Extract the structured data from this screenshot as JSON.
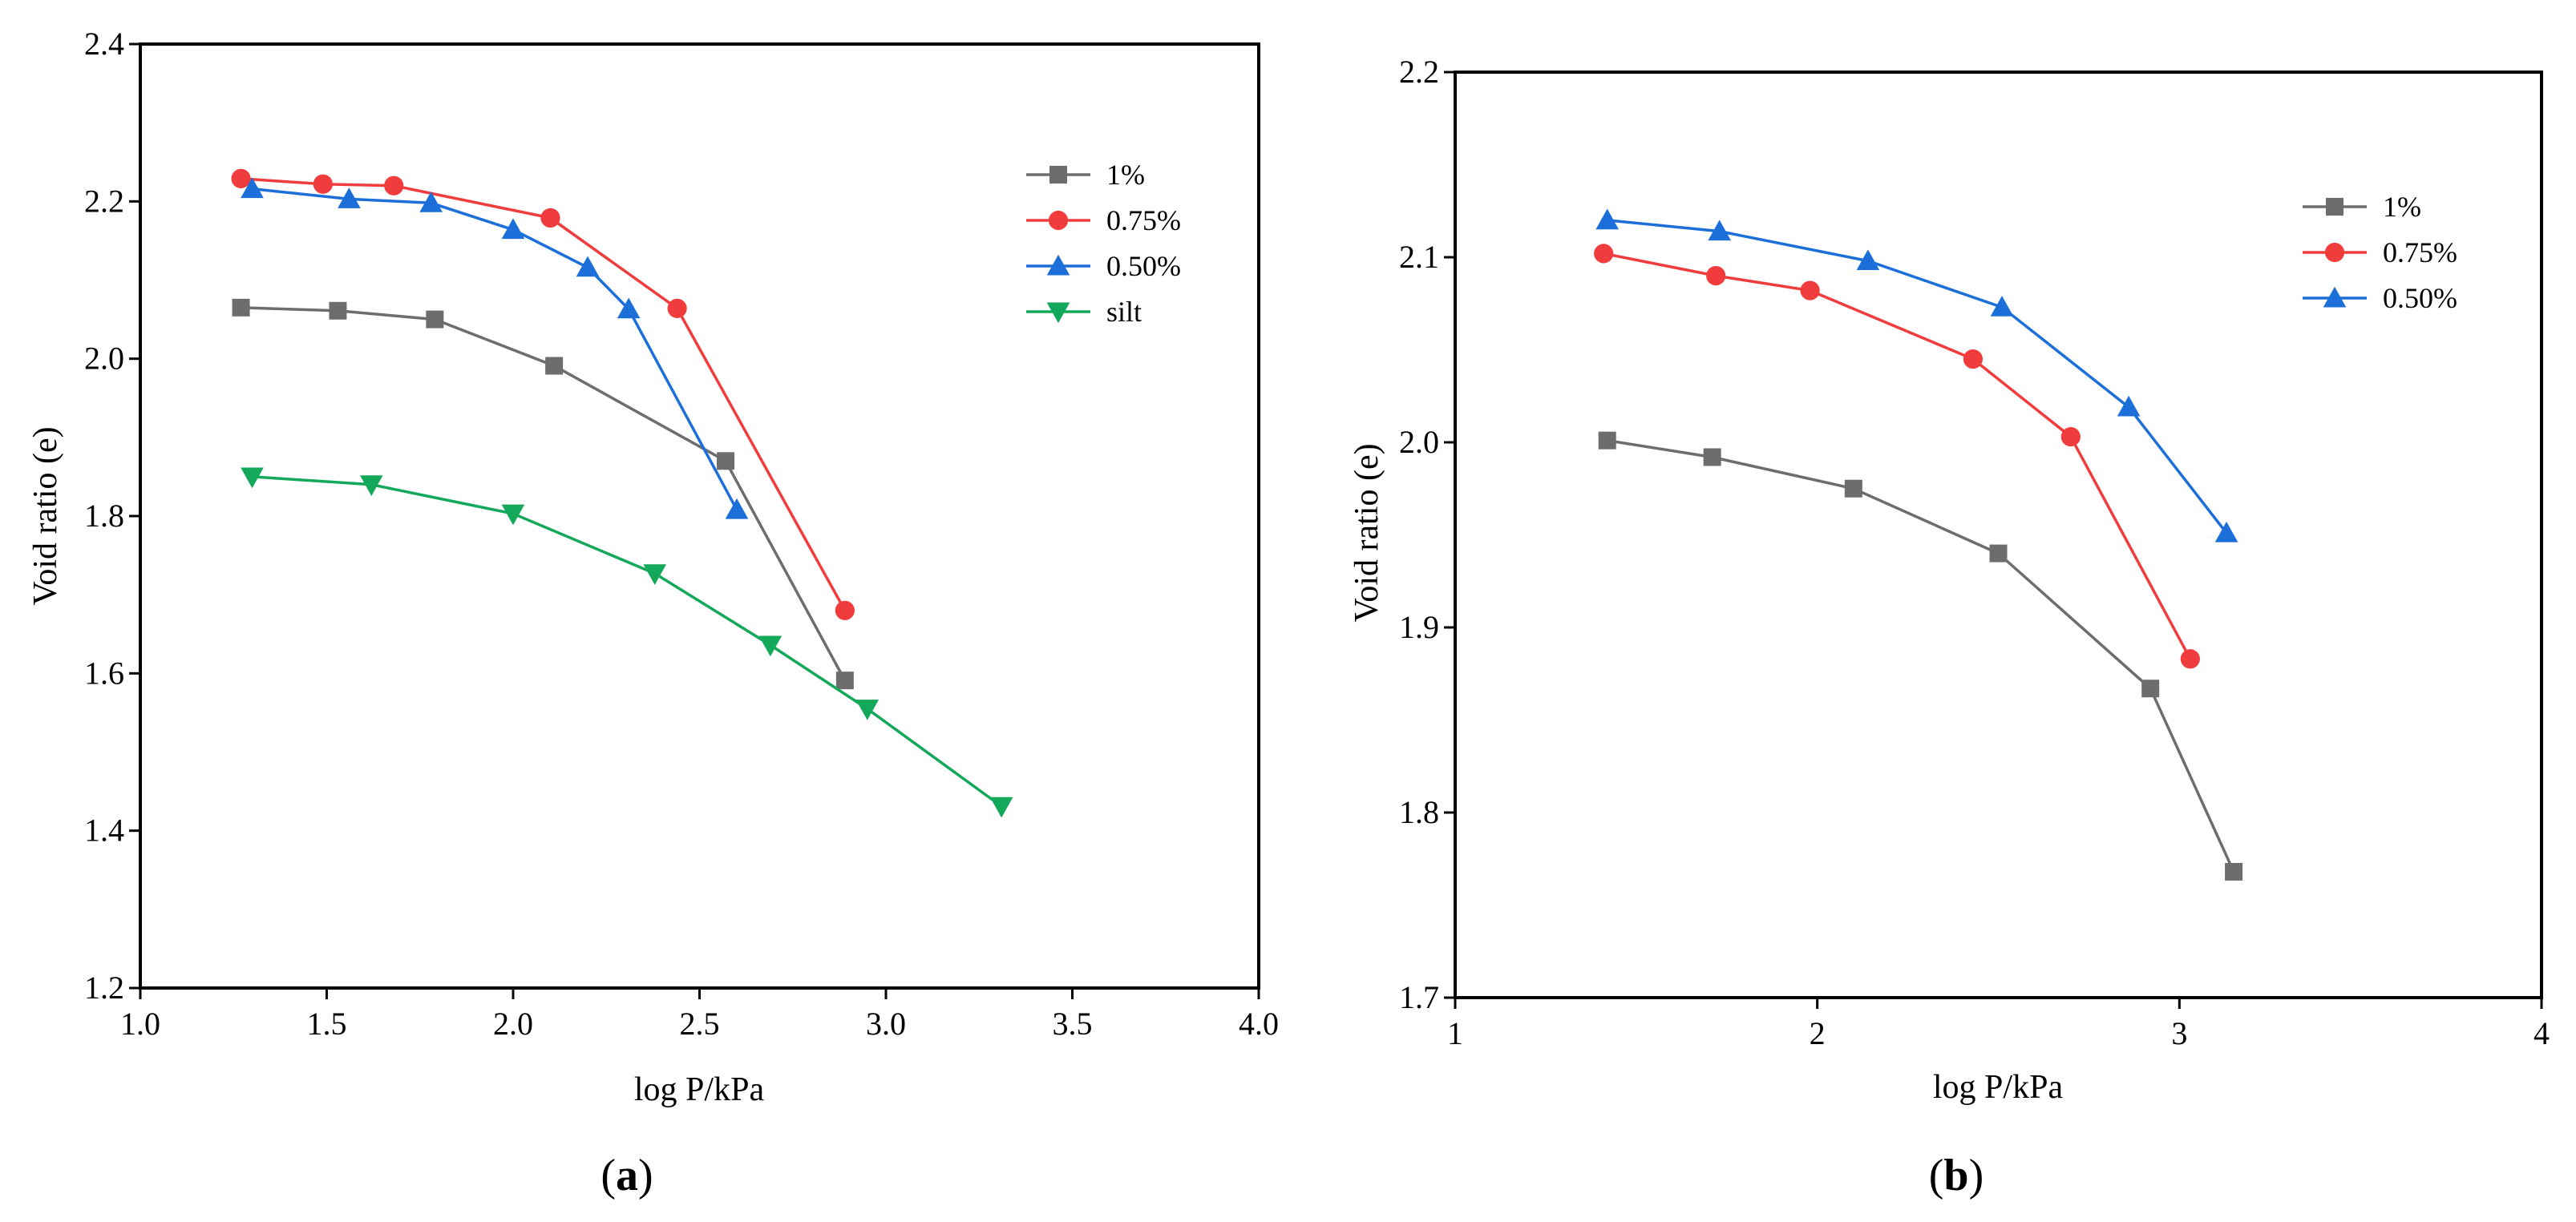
{
  "chart_data": [
    {
      "type": "line",
      "panel": "a",
      "title": "",
      "xlabel": "log P/kPa",
      "ylabel": "Void ratio (e)",
      "xlim": [
        1.0,
        4.0
      ],
      "ylim": [
        1.2,
        2.4
      ],
      "xticks": [
        1.0,
        1.5,
        2.0,
        2.5,
        3.0,
        3.5,
        4.0
      ],
      "xtick_labels": [
        "1.0",
        "1.5",
        "2.0",
        "2.5",
        "3.0",
        "3.5",
        "4.0"
      ],
      "yticks": [
        1.2,
        1.4,
        1.6,
        1.8,
        2.0,
        2.2,
        2.4
      ],
      "ytick_labels": [
        "1.2",
        "1.4",
        "1.6",
        "1.8",
        "2.0",
        "2.2",
        "2.4"
      ],
      "legend_position": "top-right",
      "series": [
        {
          "name": "1%",
          "color": "#6d6d6d",
          "marker": "square",
          "x": [
            1.27,
            1.53,
            1.79,
            2.11,
            2.57,
            2.89
          ],
          "y": [
            2.065,
            2.061,
            2.05,
            1.991,
            1.87,
            1.591
          ]
        },
        {
          "name": "0.75%",
          "color": "#f03c3c",
          "marker": "circle",
          "x": [
            1.27,
            1.49,
            1.68,
            2.1,
            2.44,
            2.89
          ],
          "y": [
            2.229,
            2.222,
            2.22,
            2.179,
            2.064,
            1.68
          ]
        },
        {
          "name": "0.50%",
          "color": "#1c6fd8",
          "marker": "triangle-up",
          "x": [
            1.3,
            1.56,
            1.78,
            2.0,
            2.2,
            2.31,
            2.6
          ],
          "y": [
            2.216,
            2.203,
            2.198,
            2.164,
            2.116,
            2.063,
            1.808
          ]
        },
        {
          "name": "silt",
          "color": "#14a85a",
          "marker": "triangle-down",
          "x": [
            1.3,
            1.62,
            2.0,
            2.38,
            2.69,
            2.95,
            3.31
          ],
          "y": [
            1.85,
            1.84,
            1.803,
            1.727,
            1.636,
            1.555,
            1.431
          ]
        }
      ],
      "caption": {
        "open": "(",
        "letter": "a",
        "close": ")"
      }
    },
    {
      "type": "line",
      "panel": "b",
      "title": "",
      "xlabel": "log P/kPa",
      "ylabel": "Void ratio (e)",
      "xlim": [
        1,
        4
      ],
      "ylim": [
        1.7,
        2.2
      ],
      "xticks": [
        1,
        2,
        3,
        4
      ],
      "xtick_labels": [
        "1",
        "2",
        "3",
        "4"
      ],
      "yticks": [
        1.7,
        1.8,
        1.9,
        2.0,
        2.1,
        2.2
      ],
      "ytick_labels": [
        "1.7",
        "1.8",
        "1.9",
        "2.0",
        "2.1",
        "2.2"
      ],
      "legend_position": "top-right",
      "series": [
        {
          "name": "1%",
          "color": "#6d6d6d",
          "marker": "square",
          "x": [
            1.42,
            1.71,
            2.1,
            2.5,
            2.92,
            3.15
          ],
          "y": [
            2.001,
            1.992,
            1.975,
            1.94,
            1.867,
            1.768
          ]
        },
        {
          "name": "0.75%",
          "color": "#f03c3c",
          "marker": "circle",
          "x": [
            1.41,
            1.72,
            1.98,
            2.43,
            2.7,
            3.03
          ],
          "y": [
            2.102,
            2.09,
            2.082,
            2.045,
            2.003,
            1.883
          ]
        },
        {
          "name": "0.50%",
          "color": "#1c6fd8",
          "marker": "triangle-up",
          "x": [
            1.42,
            1.73,
            2.14,
            2.51,
            2.86,
            3.13
          ],
          "y": [
            2.12,
            2.114,
            2.098,
            2.073,
            2.019,
            1.951
          ]
        }
      ],
      "caption": {
        "open": "(",
        "letter": "b",
        "close": ")"
      }
    }
  ]
}
